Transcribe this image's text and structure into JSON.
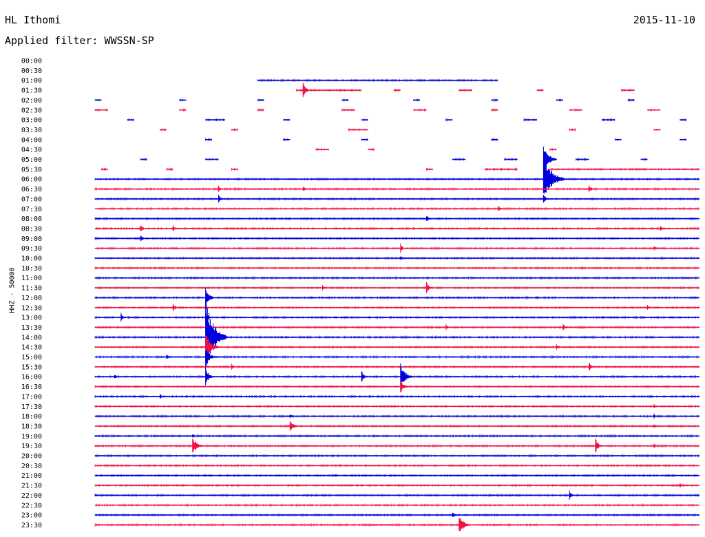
{
  "header": {
    "station": "HL Ithomi",
    "date": "2015-11-10",
    "filter": "Applied filter: WWSSN-SP"
  },
  "chart_data": {
    "type": "helicorder",
    "ylabel": "HHZ - 50000",
    "row_minutes": 30,
    "colors": [
      "#0000dd",
      "#ee1144"
    ],
    "rows": [
      {
        "time": "00:00",
        "segments": [],
        "events": []
      },
      {
        "time": "00:30",
        "segments": [],
        "events": []
      },
      {
        "time": "01:00",
        "segments": [
          [
            0.32,
            0.69
          ]
        ],
        "events": []
      },
      {
        "time": "01:30",
        "segments": [
          [
            0.38,
            0.48
          ],
          [
            0.53,
            0.54
          ],
          [
            0.63,
            0.65
          ],
          [
            0.75,
            0.76
          ],
          [
            0.88,
            0.9
          ]
        ],
        "events": [
          [
            0.39,
            12
          ]
        ]
      },
      {
        "time": "02:00",
        "segments": [
          [
            0.07,
            0.08
          ],
          [
            0.2,
            0.21
          ],
          [
            0.32,
            0.33
          ],
          [
            0.45,
            0.46
          ],
          [
            0.56,
            0.57
          ],
          [
            0.68,
            0.69
          ],
          [
            0.78,
            0.79
          ],
          [
            0.89,
            0.9
          ]
        ],
        "events": []
      },
      {
        "time": "02:30",
        "segments": [
          [
            0.07,
            0.09
          ],
          [
            0.2,
            0.21
          ],
          [
            0.32,
            0.33
          ],
          [
            0.45,
            0.47
          ],
          [
            0.56,
            0.58
          ],
          [
            0.68,
            0.69
          ],
          [
            0.8,
            0.82
          ],
          [
            0.92,
            0.94
          ]
        ],
        "events": []
      },
      {
        "time": "03:00",
        "segments": [
          [
            0.12,
            0.13
          ],
          [
            0.24,
            0.27
          ],
          [
            0.36,
            0.37
          ],
          [
            0.48,
            0.49
          ],
          [
            0.61,
            0.62
          ],
          [
            0.73,
            0.75
          ],
          [
            0.85,
            0.87
          ],
          [
            0.97,
            0.98
          ]
        ],
        "events": []
      },
      {
        "time": "03:30",
        "segments": [
          [
            0.17,
            0.18
          ],
          [
            0.28,
            0.29
          ],
          [
            0.46,
            0.49
          ],
          [
            0.8,
            0.81
          ],
          [
            0.93,
            0.94
          ]
        ],
        "events": []
      },
      {
        "time": "04:00",
        "segments": [
          [
            0.24,
            0.25
          ],
          [
            0.36,
            0.37
          ],
          [
            0.48,
            0.49
          ],
          [
            0.68,
            0.69
          ],
          [
            0.87,
            0.88
          ],
          [
            0.97,
            0.98
          ]
        ],
        "events": []
      },
      {
        "time": "04:30",
        "segments": [
          [
            0.41,
            0.43
          ],
          [
            0.49,
            0.5
          ],
          [
            0.77,
            0.78
          ]
        ],
        "events": []
      },
      {
        "time": "05:00",
        "segments": [
          [
            0.14,
            0.15
          ],
          [
            0.24,
            0.26
          ],
          [
            0.62,
            0.64
          ],
          [
            0.7,
            0.72
          ],
          [
            0.81,
            0.83
          ],
          [
            0.91,
            0.92
          ]
        ],
        "events": [
          [
            0.76,
            22
          ]
        ]
      },
      {
        "time": "05:30",
        "segments": [
          [
            0.08,
            0.09
          ],
          [
            0.18,
            0.19
          ],
          [
            0.28,
            0.29
          ],
          [
            0.58,
            0.59
          ],
          [
            0.67,
            0.72
          ],
          [
            0.77,
            1.0
          ]
        ],
        "events": []
      },
      {
        "time": "06:00",
        "segments": [
          [
            0.07,
            1.0
          ]
        ],
        "events": [
          [
            0.76,
            38
          ]
        ]
      },
      {
        "time": "06:30",
        "segments": [
          [
            0.07,
            1.0
          ]
        ],
        "events": [
          [
            0.26,
            5
          ],
          [
            0.39,
            5
          ],
          [
            0.83,
            8
          ]
        ]
      },
      {
        "time": "07:00",
        "segments": [
          [
            0.07,
            1.0
          ]
        ],
        "events": [
          [
            0.26,
            7
          ],
          [
            0.76,
            8
          ]
        ]
      },
      {
        "time": "07:30",
        "segments": [
          [
            0.07,
            1.0
          ]
        ],
        "events": [
          [
            0.69,
            5
          ]
        ]
      },
      {
        "time": "08:00",
        "segments": [
          [
            0.07,
            1.0
          ]
        ],
        "events": [
          [
            0.58,
            6
          ]
        ]
      },
      {
        "time": "08:30",
        "segments": [
          [
            0.07,
            1.0
          ]
        ],
        "events": [
          [
            0.14,
            6
          ],
          [
            0.19,
            6
          ],
          [
            0.94,
            5
          ]
        ]
      },
      {
        "time": "09:00",
        "segments": [
          [
            0.07,
            1.0
          ]
        ],
        "events": [
          [
            0.14,
            5
          ]
        ]
      },
      {
        "time": "09:30",
        "segments": [
          [
            0.07,
            1.0
          ]
        ],
        "events": [
          [
            0.54,
            8
          ],
          [
            0.93,
            4
          ]
        ]
      },
      {
        "time": "10:00",
        "segments": [
          [
            0.07,
            1.0
          ]
        ],
        "events": [
          [
            0.54,
            4
          ]
        ]
      },
      {
        "time": "10:30",
        "segments": [
          [
            0.07,
            1.0
          ]
        ],
        "events": [
          [
            0.82,
            3
          ]
        ]
      },
      {
        "time": "11:00",
        "segments": [
          [
            0.07,
            1.0
          ]
        ],
        "events": []
      },
      {
        "time": "11:30",
        "segments": [
          [
            0.07,
            1.0
          ]
        ],
        "events": [
          [
            0.42,
            4
          ],
          [
            0.58,
            10
          ]
        ]
      },
      {
        "time": "12:00",
        "segments": [
          [
            0.07,
            1.0
          ]
        ],
        "events": [
          [
            0.24,
            16
          ],
          [
            0.75,
            3
          ]
        ]
      },
      {
        "time": "12:30",
        "segments": [
          [
            0.07,
            1.0
          ]
        ],
        "events": [
          [
            0.19,
            8
          ],
          [
            0.92,
            4
          ]
        ]
      },
      {
        "time": "13:00",
        "segments": [
          [
            0.07,
            1.0
          ]
        ],
        "events": [
          [
            0.11,
            7
          ],
          [
            0.24,
            10
          ]
        ]
      },
      {
        "time": "13:30",
        "segments": [
          [
            0.07,
            1.0
          ]
        ],
        "events": [
          [
            0.24,
            14
          ],
          [
            0.61,
            5
          ],
          [
            0.79,
            6
          ]
        ]
      },
      {
        "time": "14:00",
        "segments": [
          [
            0.07,
            1.0
          ]
        ],
        "events": [
          [
            0.24,
            60
          ],
          [
            0.27,
            4
          ]
        ]
      },
      {
        "time": "14:30",
        "segments": [
          [
            0.07,
            1.0
          ]
        ],
        "events": [
          [
            0.24,
            22
          ],
          [
            0.78,
            5
          ]
        ]
      },
      {
        "time": "15:00",
        "segments": [
          [
            0.07,
            1.0
          ]
        ],
        "events": [
          [
            0.24,
            16
          ],
          [
            0.18,
            4
          ]
        ]
      },
      {
        "time": "15:30",
        "segments": [
          [
            0.07,
            1.0
          ]
        ],
        "events": [
          [
            0.28,
            5
          ],
          [
            0.83,
            8
          ]
        ]
      },
      {
        "time": "16:00",
        "segments": [
          [
            0.07,
            1.0
          ]
        ],
        "events": [
          [
            0.1,
            4
          ],
          [
            0.24,
            14
          ],
          [
            0.48,
            10
          ],
          [
            0.54,
            20
          ]
        ]
      },
      {
        "time": "16:30",
        "segments": [
          [
            0.07,
            1.0
          ]
        ],
        "events": [
          [
            0.54,
            12
          ]
        ]
      },
      {
        "time": "17:00",
        "segments": [
          [
            0.07,
            1.0
          ]
        ],
        "events": [
          [
            0.17,
            4
          ]
        ]
      },
      {
        "time": "17:30",
        "segments": [
          [
            0.07,
            1.0
          ]
        ],
        "events": [
          [
            0.93,
            4
          ]
        ]
      },
      {
        "time": "18:00",
        "segments": [
          [
            0.07,
            1.0
          ]
        ],
        "events": [
          [
            0.37,
            4
          ],
          [
            0.93,
            4
          ]
        ]
      },
      {
        "time": "18:30",
        "segments": [
          [
            0.07,
            1.0
          ]
        ],
        "events": [
          [
            0.37,
            12
          ],
          [
            0.93,
            4
          ]
        ]
      },
      {
        "time": "19:00",
        "segments": [
          [
            0.07,
            1.0
          ]
        ],
        "events": [
          [
            0.22,
            4
          ]
        ]
      },
      {
        "time": "19:30",
        "segments": [
          [
            0.07,
            1.0
          ]
        ],
        "events": [
          [
            0.22,
            16
          ],
          [
            0.84,
            12
          ],
          [
            0.93,
            4
          ]
        ]
      },
      {
        "time": "20:00",
        "segments": [
          [
            0.07,
            1.0
          ]
        ],
        "events": []
      },
      {
        "time": "20:30",
        "segments": [
          [
            0.07,
            1.0
          ]
        ],
        "events": []
      },
      {
        "time": "21:00",
        "segments": [
          [
            0.07,
            1.0
          ]
        ],
        "events": [
          [
            0.44,
            3
          ]
        ]
      },
      {
        "time": "21:30",
        "segments": [
          [
            0.07,
            1.0
          ]
        ],
        "events": [
          [
            0.97,
            4
          ]
        ]
      },
      {
        "time": "22:00",
        "segments": [
          [
            0.07,
            1.0
          ]
        ],
        "events": [
          [
            0.07,
            3
          ],
          [
            0.8,
            8
          ]
        ]
      },
      {
        "time": "22:30",
        "segments": [
          [
            0.07,
            1.0
          ]
        ],
        "events": []
      },
      {
        "time": "23:00",
        "segments": [
          [
            0.07,
            1.0
          ]
        ],
        "events": [
          [
            0.62,
            5
          ]
        ]
      },
      {
        "time": "23:30",
        "segments": [
          [
            0.07,
            1.0
          ]
        ],
        "events": [
          [
            0.63,
            18
          ]
        ]
      }
    ]
  }
}
